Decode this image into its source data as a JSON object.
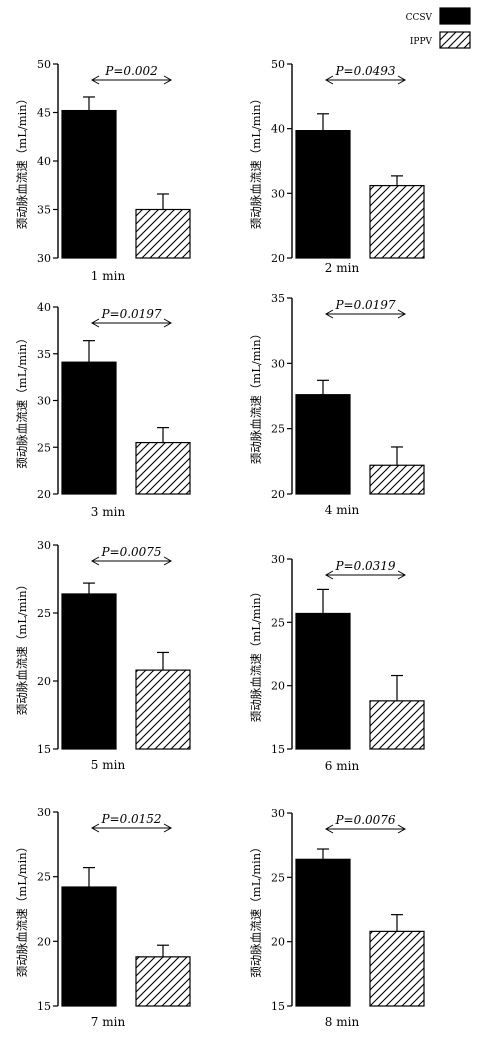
{
  "legend": {
    "placement": "top-right",
    "entries": [
      {
        "label": "CCSV",
        "fill": "solid-black"
      },
      {
        "label": "IPPV",
        "fill": "diagonal-hatch"
      }
    ]
  },
  "colors": {
    "bar": "#000000",
    "hatch": "#000000",
    "background": "#ffffff"
  },
  "chart_data": [
    {
      "type": "bar",
      "categories": [
        "CCSV",
        "IPPV"
      ],
      "values": [
        45.2,
        35.0
      ],
      "errors": [
        1.4,
        1.6
      ],
      "ylim": [
        30,
        50
      ],
      "yticks": [
        "30",
        "35",
        "40",
        "45",
        "50"
      ],
      "ylabel": "颈动脉血流速（mL/min）",
      "xlabel": "1 min",
      "annotation": "P=0.002"
    },
    {
      "type": "bar",
      "categories": [
        "CCSV",
        "IPPV"
      ],
      "values": [
        39.7,
        31.2
      ],
      "errors": [
        2.6,
        1.5
      ],
      "ylim": [
        20,
        50
      ],
      "yticks": [
        "20",
        "30",
        "40",
        "50"
      ],
      "ylabel": "颈动脉血流速（mL/min）",
      "xlabel": "2 min",
      "annotation": "P=0.0493"
    },
    {
      "type": "bar",
      "categories": [
        "CCSV",
        "IPPV"
      ],
      "values": [
        34.1,
        25.5
      ],
      "errors": [
        2.3,
        1.6
      ],
      "ylim": [
        20,
        40
      ],
      "yticks": [
        "20",
        "25",
        "30",
        "35",
        "40"
      ],
      "ylabel": "颈动脉血流速（mL/min）",
      "xlabel": "3 min",
      "annotation": "P=0.0197"
    },
    {
      "type": "bar",
      "categories": [
        "CCSV",
        "IPPV"
      ],
      "values": [
        27.6,
        22.2
      ],
      "errors": [
        1.1,
        1.4
      ],
      "ylim": [
        20,
        35
      ],
      "yticks": [
        "20",
        "25",
        "30",
        "35"
      ],
      "ylabel": "颈动脉血流速（mL/min）",
      "xlabel": "4 min",
      "annotation": "P=0.0197"
    },
    {
      "type": "bar",
      "categories": [
        "CCSV",
        "IPPV"
      ],
      "values": [
        26.4,
        20.8
      ],
      "errors": [
        0.8,
        1.3
      ],
      "ylim": [
        15,
        30
      ],
      "yticks": [
        "15",
        "20",
        "25",
        "30"
      ],
      "ylabel": "颈动脉血流速（mL/min）",
      "xlabel": "5 min",
      "annotation": "P=0.0075"
    },
    {
      "type": "bar",
      "categories": [
        "CCSV",
        "IPPV"
      ],
      "values": [
        25.7,
        18.8
      ],
      "errors": [
        1.9,
        2.0
      ],
      "ylim": [
        15,
        30
      ],
      "yticks": [
        "15",
        "20",
        "25",
        "30"
      ],
      "ylabel": "颈动脉血流速（mL/min）",
      "xlabel": "6 min",
      "annotation": "P=0.0319"
    },
    {
      "type": "bar",
      "categories": [
        "CCSV",
        "IPPV"
      ],
      "values": [
        24.2,
        18.8
      ],
      "errors": [
        1.5,
        0.9
      ],
      "ylim": [
        15,
        30
      ],
      "yticks": [
        "15",
        "20",
        "25",
        "30"
      ],
      "ylabel": "颈动脉血流速（mL/min）",
      "xlabel": "7 min",
      "annotation": "P=0.0152"
    },
    {
      "type": "bar",
      "categories": [
        "CCSV",
        "IPPV"
      ],
      "values": [
        26.4,
        20.8
      ],
      "errors": [
        0.8,
        1.3
      ],
      "ylim": [
        15,
        30
      ],
      "yticks": [
        "15",
        "20",
        "25",
        "30"
      ],
      "ylabel": "颈动脉血流速（mL/min）",
      "xlabel": "8 min",
      "annotation": "P=0.0076"
    }
  ]
}
